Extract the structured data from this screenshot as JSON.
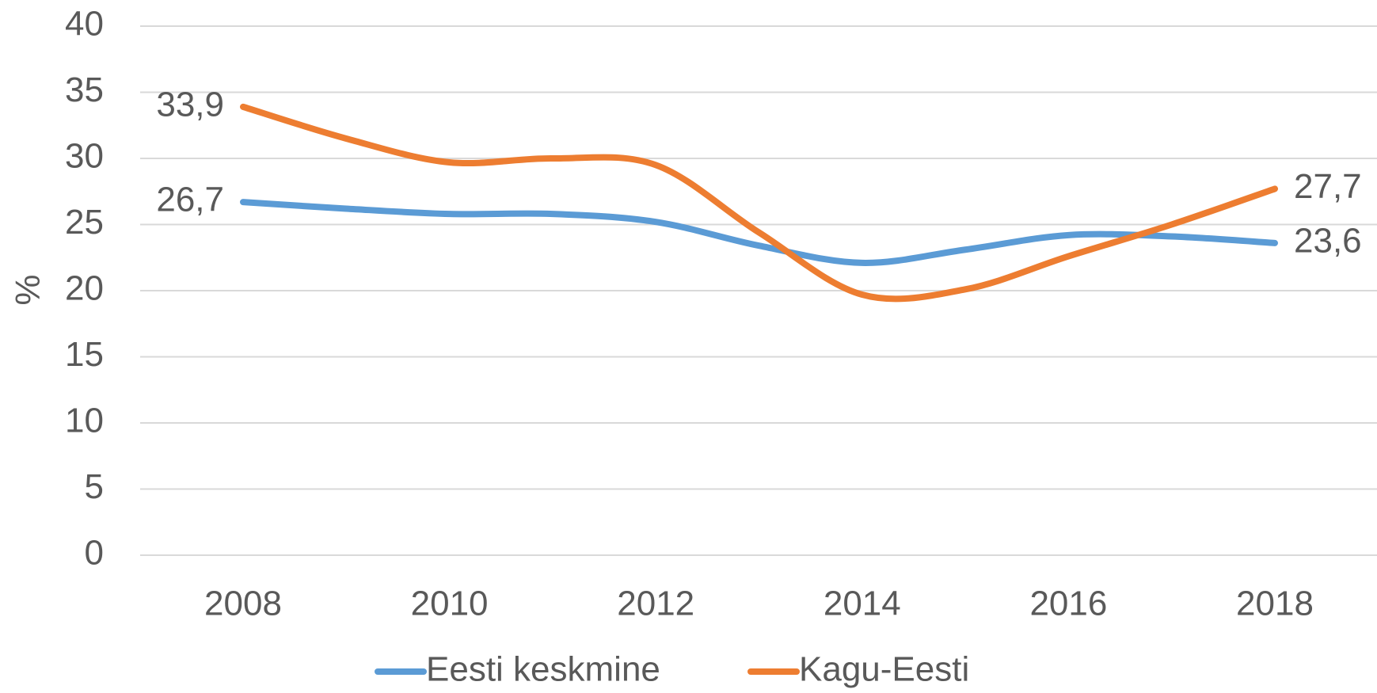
{
  "chart_data": {
    "type": "line",
    "x": [
      "2008",
      null,
      "2010",
      null,
      "2012",
      null,
      "2014",
      null,
      "2016",
      null,
      "2018"
    ],
    "y_label": "%",
    "ylim": [
      0,
      40
    ],
    "yticks": [
      0,
      5,
      10,
      15,
      20,
      25,
      30,
      35,
      40
    ],
    "grid": true,
    "legend": "bottom",
    "series": [
      {
        "name": "Eesti keskmine",
        "color": "#5b9bd5",
        "values": [
          26.7,
          26.2,
          25.8,
          25.8,
          25.2,
          23.4,
          22.1,
          23.1,
          24.2,
          24.1,
          23.6
        ],
        "value_labels": [
          "26,7",
          null,
          null,
          null,
          null,
          null,
          null,
          null,
          null,
          null,
          "23,6"
        ]
      },
      {
        "name": "Kagu-Eesti",
        "color": "#ed7d31",
        "values": [
          33.9,
          31.5,
          29.7,
          30.0,
          29.5,
          24.4,
          19.7,
          20.1,
          22.6,
          25.0,
          27.7
        ],
        "value_labels": [
          "33,9",
          null,
          null,
          null,
          null,
          null,
          null,
          null,
          null,
          null,
          "27,7"
        ]
      }
    ]
  }
}
